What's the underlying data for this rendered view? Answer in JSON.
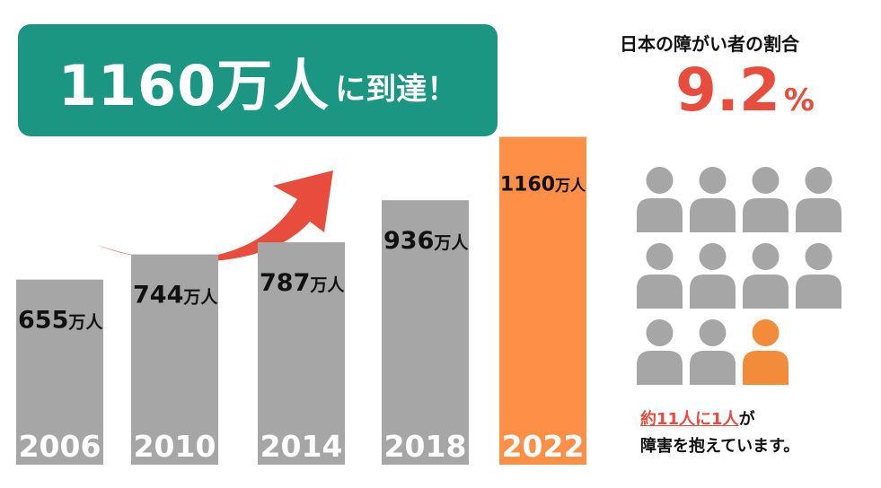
{
  "headline": {
    "big": "1160万人",
    "small": "に到達！"
  },
  "ratio": {
    "title": "日本の障がい者の割合",
    "value": "9.2",
    "unit": "%"
  },
  "people_icons": {
    "total": 11,
    "highlighted_index": 10,
    "default_color": "#a6a6a6",
    "highlight_color": "#f28c3a"
  },
  "note": {
    "highlight": "約11人に1人",
    "line1_rest": "が",
    "line2": "障害を抱えています。"
  },
  "colors": {
    "accent_teal": "#1a9683",
    "bar_gray": "#a6a6a6",
    "bar_highlight": "#fd8f47",
    "arrow_red": "#e84c3d"
  },
  "chart_data": {
    "type": "bar",
    "categories": [
      "2006",
      "2010",
      "2014",
      "2018",
      "2022"
    ],
    "values": [
      655,
      744,
      787,
      936,
      1160
    ],
    "value_labels": [
      {
        "num": "655",
        "unit": "万人"
      },
      {
        "num": "744",
        "unit": "万人"
      },
      {
        "num": "787",
        "unit": "万人"
      },
      {
        "num": "936",
        "unit": "万人"
      },
      {
        "num": "1160",
        "unit": "万人"
      }
    ],
    "highlight_category": "2022",
    "title": "",
    "xlabel": "",
    "ylabel": "",
    "grid": false,
    "legend": "none"
  }
}
